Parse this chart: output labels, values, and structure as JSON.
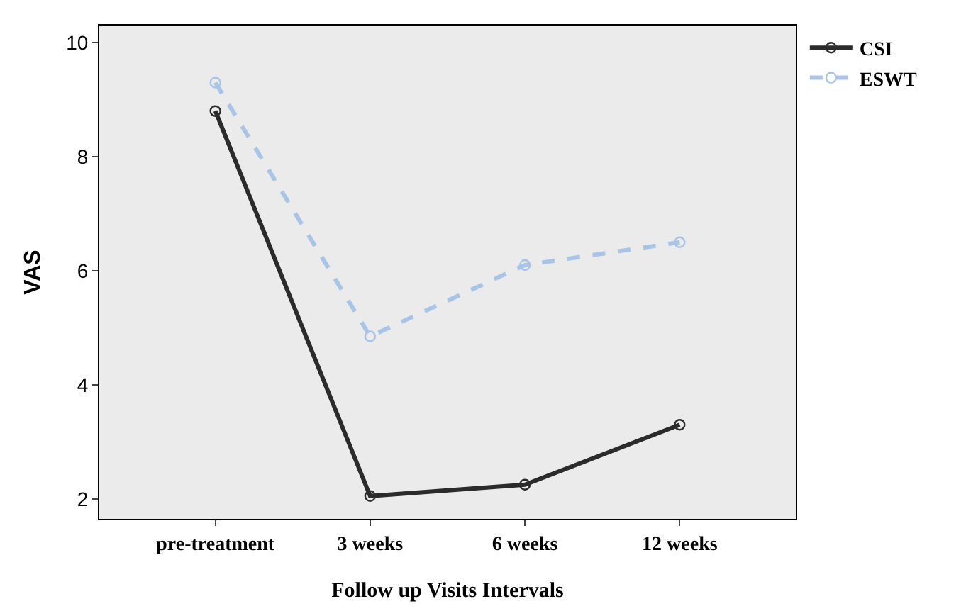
{
  "chart_data": {
    "type": "line",
    "xlabel": "Follow up Visits Intervals",
    "ylabel": "VAS",
    "categories": [
      "pre-treatment",
      "3 weeks",
      "6 weeks",
      "12 weeks"
    ],
    "series": [
      {
        "name": "CSI",
        "color": "#2b2b2b",
        "line_style": "solid",
        "values": [
          8.8,
          2.05,
          2.25,
          3.3
        ]
      },
      {
        "name": "ESWT",
        "color": "#a8c4e6",
        "line_style": "dashed",
        "values": [
          9.3,
          4.85,
          6.1,
          6.5
        ]
      }
    ],
    "ylim": [
      1.65,
      10.3
    ],
    "yticks": [
      2,
      4,
      6,
      8,
      10
    ],
    "grid": false,
    "legend": "right",
    "marker": "circle"
  }
}
